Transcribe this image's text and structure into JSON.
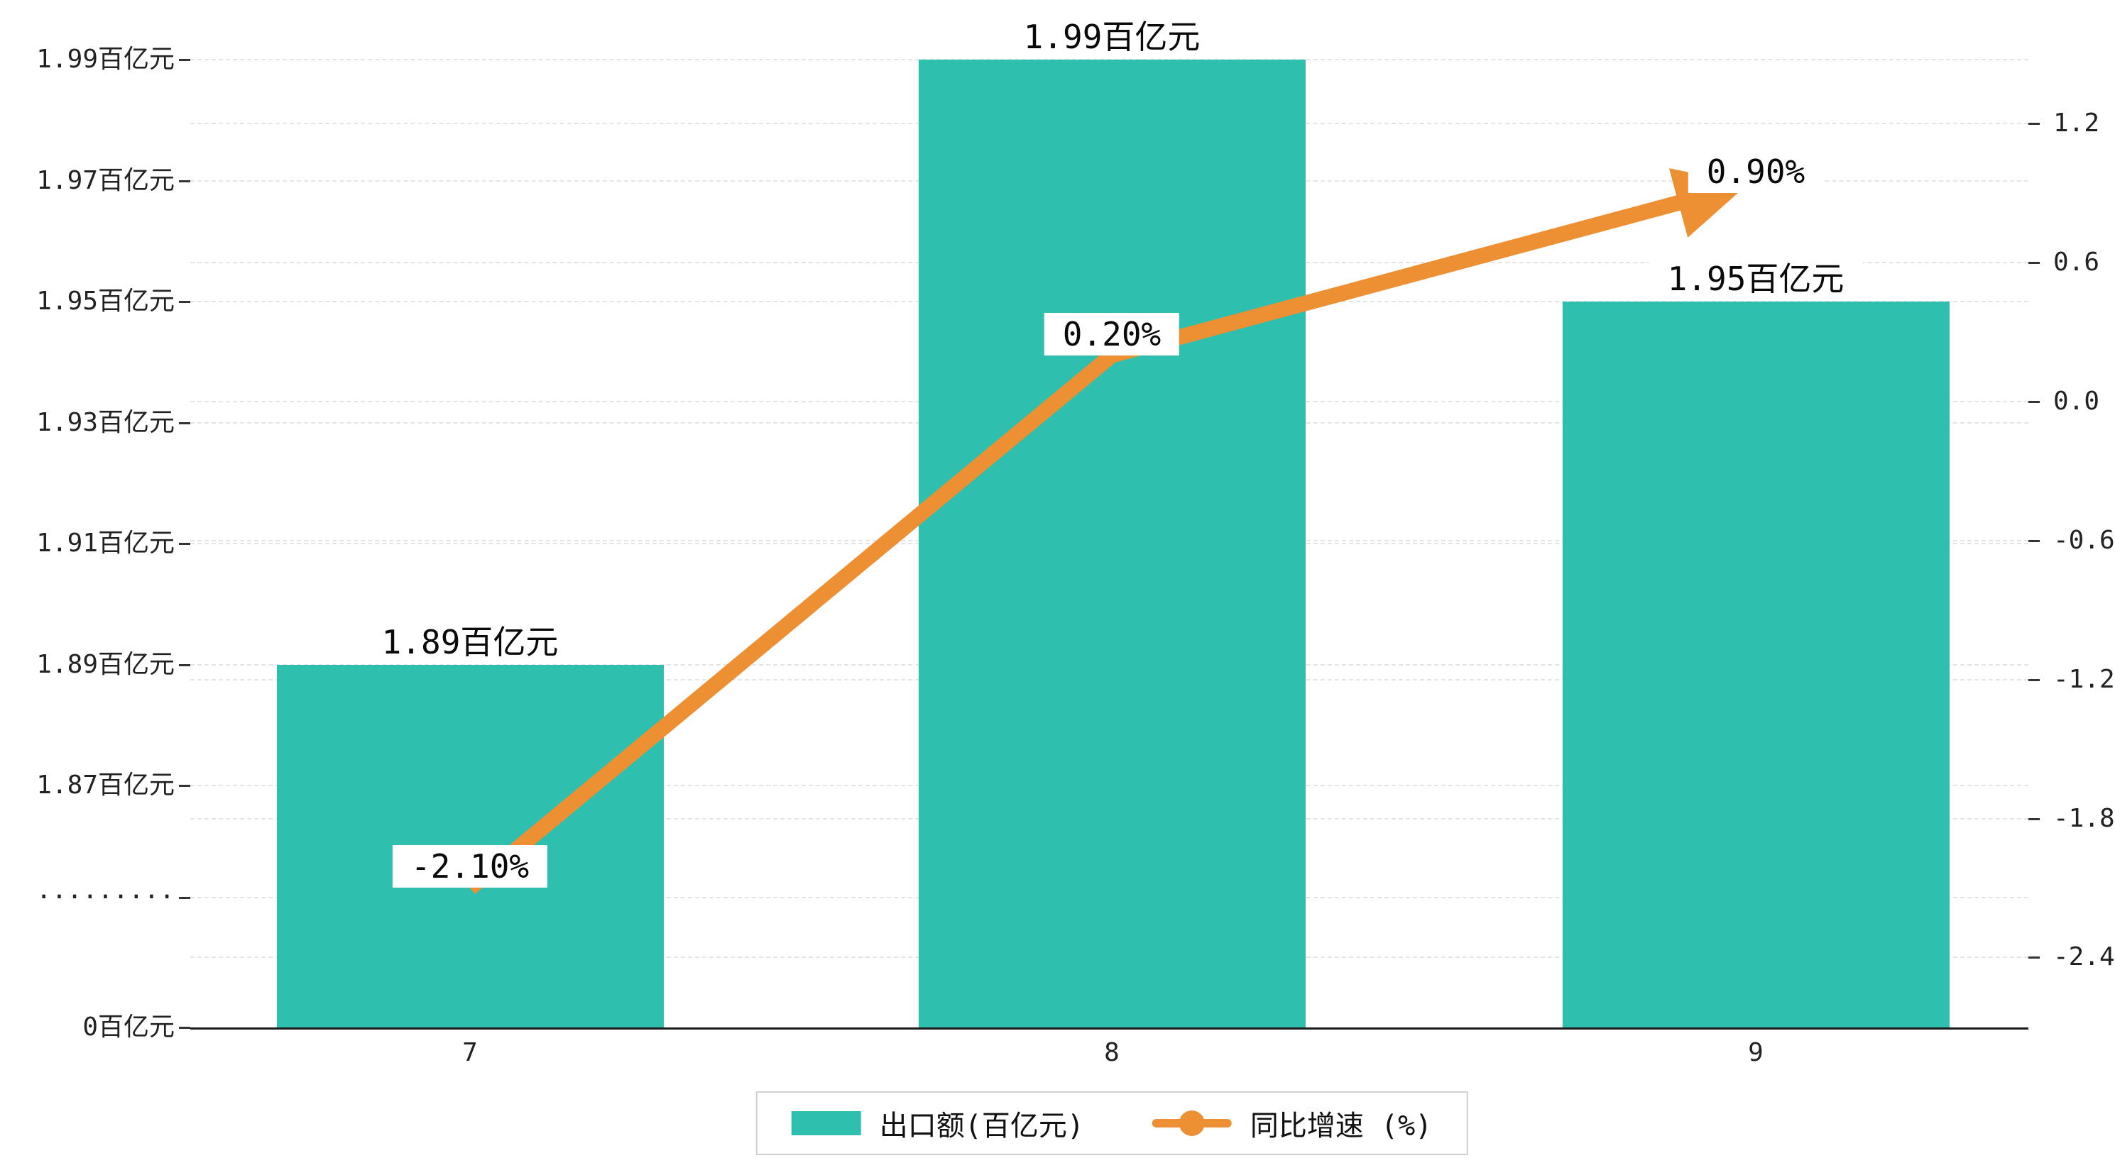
{
  "chart_data": {
    "type": "bar",
    "combo": "bar+line-dual-axis",
    "categories": [
      "7",
      "8",
      "9"
    ],
    "series": [
      {
        "name": "出口额(百亿元)",
        "type": "bar",
        "axis": "left",
        "color": "#2fbfaf",
        "values": [
          1.89,
          1.99,
          1.95
        ],
        "data_labels": [
          "1.89百亿元",
          "1.99百亿元",
          "1.95百亿元"
        ]
      },
      {
        "name": "同比增速 (%)",
        "type": "line",
        "axis": "right",
        "color": "#ed8f33",
        "values": [
          -2.1,
          0.2,
          0.9
        ],
        "data_labels": [
          "-2.10%",
          "0.20%",
          "0.90%"
        ],
        "arrow_end": true
      }
    ],
    "left_axis": {
      "unit": "百亿元",
      "axis_break": true,
      "ticks": [
        {
          "value": 1.99,
          "label": "1.99百亿元"
        },
        {
          "value": 1.97,
          "label": "1.97百亿元"
        },
        {
          "value": 1.95,
          "label": "1.95百亿元"
        },
        {
          "value": 1.93,
          "label": "1.93百亿元"
        },
        {
          "value": 1.91,
          "label": "1.91百亿元"
        },
        {
          "value": 1.89,
          "label": "1.89百亿元"
        },
        {
          "value": 1.87,
          "label": "1.87百亿元"
        }
      ],
      "break_label": "·········",
      "zero_label": "0百亿元"
    },
    "right_axis": {
      "ticks": [
        {
          "value": 1.2,
          "label": "1.2"
        },
        {
          "value": 0.6,
          "label": "0.6"
        },
        {
          "value": 0.0,
          "label": "0.0"
        },
        {
          "value": -0.6,
          "label": "-0.6"
        },
        {
          "value": -1.2,
          "label": "-1.2"
        },
        {
          "value": -1.8,
          "label": "-1.8"
        },
        {
          "value": -2.4,
          "label": "-2.4"
        }
      ]
    },
    "legend": {
      "position": "bottom-center",
      "items": [
        {
          "label": "出口额(百亿元)",
          "marker": "bar-swatch-icon"
        },
        {
          "label": "同比增速 (%)",
          "marker": "line-marker-icon"
        }
      ]
    },
    "grid": "dashed-horizontal",
    "xlim_categories": 3
  },
  "colors": {
    "bar": "#2fbfaf",
    "line": "#ed8f33",
    "background": "#ffffff",
    "grid": "#e4e4e4",
    "text": "#111111",
    "axis": "#1a1a1a"
  }
}
